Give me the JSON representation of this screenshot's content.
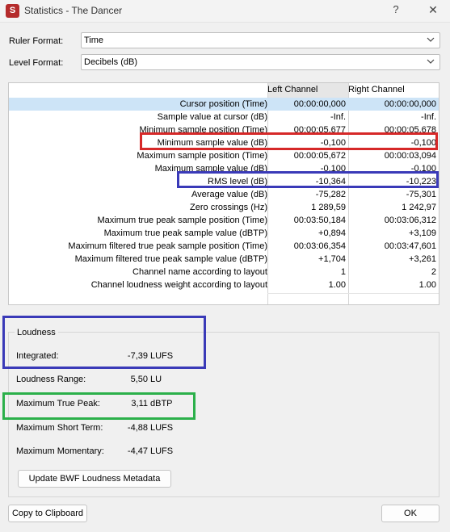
{
  "window": {
    "title": "Statistics - The Dancer",
    "icon_letter": "S",
    "help_label": "?",
    "close_label": "✕"
  },
  "ruler": {
    "label": "Ruler Format:",
    "value": "Time"
  },
  "level": {
    "label": "Level Format:",
    "value": "Decibels (dB)"
  },
  "table": {
    "headers": [
      "Left Channel",
      "Right Channel"
    ],
    "rows": [
      {
        "label": "Cursor position (Time)",
        "left": "00:00:00,000",
        "right": "00:00:00,000"
      },
      {
        "label": "Sample value at cursor (dB)",
        "left": "-Inf.",
        "right": "-Inf."
      },
      {
        "label": "Minimum sample position (Time)",
        "left": "00:00:05,677",
        "right": "00:00:05,678"
      },
      {
        "label": "Minimum sample value (dB)",
        "left": "-0,100",
        "right": "-0,100"
      },
      {
        "label": "Maximum sample position (Time)",
        "left": "00:00:05,672",
        "right": "00:00:03,094"
      },
      {
        "label": "Maximum sample value (dB)",
        "left": "-0,100",
        "right": "-0,100"
      },
      {
        "label": "RMS level (dB)",
        "left": "-10,364",
        "right": "-10,223"
      },
      {
        "label": "Average value (dB)",
        "left": "-75,282",
        "right": "-75,301"
      },
      {
        "label": "Zero crossings (Hz)",
        "left": "1 289,59",
        "right": "1 242,97"
      },
      {
        "label": "Maximum true peak sample position (Time)",
        "left": "00:03:50,184",
        "right": "00:03:06,312"
      },
      {
        "label": "Maximum true peak sample value (dBTP)",
        "left": "+0,894",
        "right": "+3,109"
      },
      {
        "label": "Maximum filtered true peak sample position (Time)",
        "left": "00:03:06,354",
        "right": "00:03:47,601"
      },
      {
        "label": "Maximum filtered true peak sample value (dBTP)",
        "left": "+1,704",
        "right": "+3,261"
      },
      {
        "label": "Channel name according to layout",
        "left": "1",
        "right": "2"
      },
      {
        "label": "Channel loudness weight according to layout",
        "left": "1.00",
        "right": "1.00"
      }
    ]
  },
  "loudness": {
    "title": "Loudness",
    "rows": [
      {
        "label": "Integrated:",
        "value": "-7,39",
        "unit": "LUFS"
      },
      {
        "label": "Loudness Range:",
        "value": "5,50",
        "unit": "LU"
      },
      {
        "label": "Maximum True Peak:",
        "value": "3,11",
        "unit": "dBTP"
      },
      {
        "label": "Maximum Short Term:",
        "value": "-4,88",
        "unit": "LUFS"
      },
      {
        "label": "Maximum Momentary:",
        "value": "-4,47",
        "unit": "LUFS"
      }
    ],
    "update_button": "Update BWF Loudness Metadata"
  },
  "footer": {
    "copy_button": "Copy to Clipboard",
    "ok_button": "OK"
  },
  "colors": {
    "highlight_red": "#d62828",
    "highlight_blue": "#3a3ab8",
    "highlight_green": "#2bb04a",
    "selection_row": "#cde4f7",
    "app_icon": "#b42b2b"
  }
}
